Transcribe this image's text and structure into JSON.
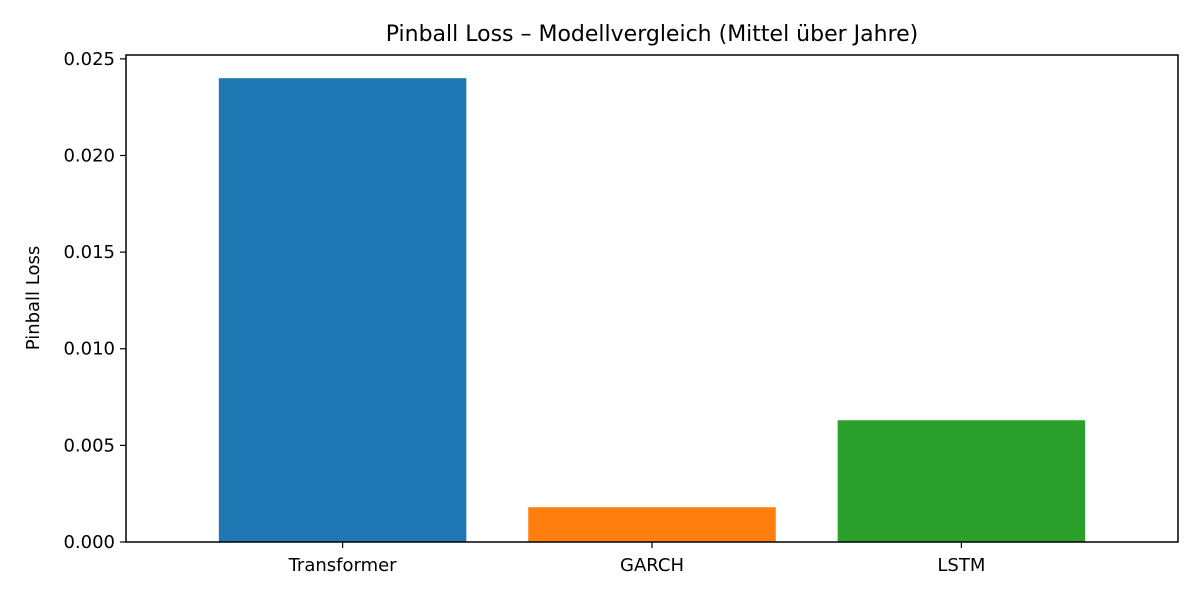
{
  "chart_data": {
    "type": "bar",
    "title": "Pinball Loss – Modellvergleich (Mittel über Jahre)",
    "xlabel": "",
    "ylabel": "Pinball Loss",
    "categories": [
      "Transformer",
      "GARCH",
      "LSTM"
    ],
    "values": [
      0.024,
      0.0018,
      0.0063
    ],
    "colors": [
      "#1f77b4",
      "#ff7f0e",
      "#2ca02c"
    ],
    "ylim": [
      0,
      0.0252
    ],
    "yticks": [
      0.0,
      0.005,
      0.01,
      0.015,
      0.02,
      0.025
    ],
    "ytick_labels": [
      "0.000",
      "0.005",
      "0.010",
      "0.015",
      "0.020",
      "0.025"
    ],
    "grid": false,
    "legend": "none"
  }
}
